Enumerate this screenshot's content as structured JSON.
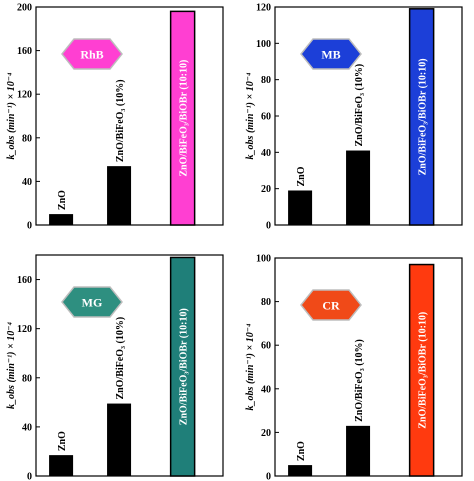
{
  "chart_data": [
    {
      "type": "bar",
      "badge": "RhB",
      "badge_color": "#ff3fd2",
      "bar_color": "#ff3fd2",
      "ylabel": "k_obs (min⁻¹) × 10⁻⁴",
      "ylim": [
        0,
        200
      ],
      "yticks": [
        0,
        40,
        80,
        120,
        160,
        200
      ],
      "categories": [
        "ZnO",
        "ZnO/BiFeO₃ (10%)",
        "ZnO/BiFeO₃/BiOBr (10:10)"
      ],
      "values": [
        10,
        54,
        196
      ]
    },
    {
      "type": "bar",
      "badge": "MB",
      "badge_color": "#1c3fd8",
      "bar_color": "#1c3fd8",
      "ylabel": "k_obs (min⁻¹) × 10⁻⁴",
      "ylim": [
        0,
        120
      ],
      "yticks": [
        0,
        20,
        40,
        60,
        80,
        100,
        120
      ],
      "categories": [
        "ZnO",
        "ZnO/BiFeO₃ (10%)",
        "ZnO/BiFeO₃/BiOBr (10:10)"
      ],
      "values": [
        19,
        41,
        119
      ]
    },
    {
      "type": "bar",
      "badge": "MG",
      "badge_color": "#2e8f80",
      "bar_color": "#1f7f79",
      "ylabel": "k_obs (min⁻¹) × 10⁻⁴",
      "ylim": [
        0,
        180
      ],
      "yticks": [
        0,
        40,
        80,
        120,
        160
      ],
      "categories": [
        "ZnO",
        "ZnO/BiFeO₃ (10%)",
        "ZnO/BiFeO₃/BiOBr (10:10)"
      ],
      "values": [
        17,
        59,
        178
      ]
    },
    {
      "type": "bar",
      "badge": "CR",
      "badge_color": "#f04a18",
      "bar_color": "#ff3a0f",
      "ylabel": "k_obs (min⁻¹) × 10⁻⁴",
      "ylim": [
        0,
        100
      ],
      "yticks": [
        0,
        20,
        40,
        60,
        80,
        100
      ],
      "categories": [
        "ZnO",
        "ZnO/BiFeO₃ (10%)",
        "ZnO/BiFeO₃/BiOBr (10:10)"
      ],
      "values": [
        5,
        23,
        97
      ]
    }
  ]
}
